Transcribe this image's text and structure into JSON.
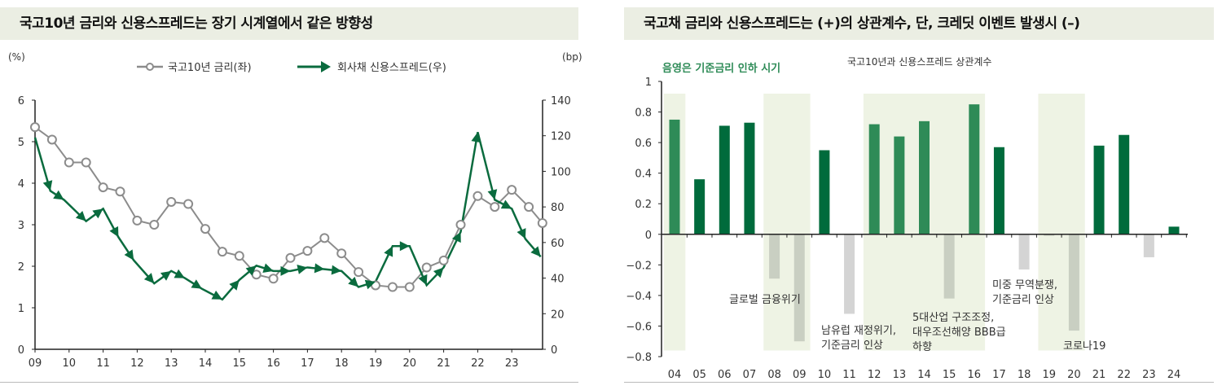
{
  "chart_data": [
    {
      "type": "line",
      "title": "국고10년 금리와 신용스프레드는 장기 시계열에서 같은 방향성",
      "ylabel_left": "(%)",
      "ylabel_right": "(bp)",
      "xlim": [
        2009,
        2024
      ],
      "ylim_left": [
        0,
        6
      ],
      "ylim_right": [
        0,
        140
      ],
      "x_ticks": [
        "09",
        "10",
        "11",
        "12",
        "13",
        "14",
        "15",
        "16",
        "17",
        "18",
        "19",
        "20",
        "21",
        "22",
        "23"
      ],
      "y_ticks_left": [
        "0",
        "1",
        "2",
        "3",
        "4",
        "5",
        "6"
      ],
      "y_ticks_right": [
        "0",
        "20",
        "40",
        "60",
        "80",
        "100",
        "120",
        "140"
      ],
      "legend_position": "top-center",
      "grid": false,
      "series": [
        {
          "name": "국고10년 금리(좌)",
          "axis": "left",
          "color": "#8c8c8c",
          "marker": "circle",
          "x": [
            2009.0,
            2009.5,
            2010.0,
            2010.5,
            2011.0,
            2011.5,
            2012.0,
            2012.5,
            2013.0,
            2013.5,
            2014.0,
            2014.5,
            2015.0,
            2015.5,
            2016.0,
            2016.5,
            2017.0,
            2017.5,
            2018.0,
            2018.5,
            2019.0,
            2019.5,
            2020.0,
            2020.5,
            2021.0,
            2021.5,
            2022.0,
            2022.5,
            2023.0,
            2023.5,
            2023.9
          ],
          "y": [
            5.35,
            5.05,
            4.5,
            4.5,
            3.9,
            3.8,
            3.1,
            3.0,
            3.55,
            3.5,
            2.9,
            2.35,
            2.25,
            1.8,
            1.7,
            2.2,
            2.37,
            2.68,
            2.31,
            1.86,
            1.54,
            1.5,
            1.5,
            1.97,
            2.14,
            3.0,
            3.69,
            3.43,
            3.84,
            3.43,
            3.04
          ]
        },
        {
          "name": "회사채 신용스프레드(우)",
          "axis": "right",
          "color": "#0a6b3e",
          "marker": "arrow",
          "x": [
            2009.0,
            2009.45,
            2009.85,
            2010.5,
            2011.0,
            2011.45,
            2011.9,
            2012.5,
            2013.0,
            2013.4,
            2013.9,
            2014.5,
            2015.0,
            2015.5,
            2016.0,
            2016.5,
            2017.0,
            2017.5,
            2018.0,
            2018.5,
            2019.0,
            2019.5,
            2020.0,
            2020.5,
            2021.0,
            2021.5,
            2022.0,
            2022.5,
            2023.0,
            2023.4,
            2023.85
          ],
          "y": [
            119,
            89,
            84,
            72,
            79,
            63,
            50,
            37,
            44,
            40,
            34,
            28,
            39,
            47,
            44,
            44,
            46,
            45,
            44,
            35,
            38,
            58,
            58,
            36,
            46,
            66,
            122,
            84,
            79,
            62,
            52
          ]
        }
      ]
    },
    {
      "type": "bar",
      "title": "국고채 금리와 신용스프레드는 (+)의 상관계수, 단, 크레딧 이벤트 발생시 (–)",
      "subtitle": "국고10년과 신용스프레드 상관계수",
      "shade_note": "음영은 기준금리 인하 시기",
      "categories": [
        "04",
        "05",
        "06",
        "07",
        "08",
        "09",
        "10",
        "11",
        "12",
        "13",
        "14",
        "15",
        "16",
        "17",
        "18",
        "19",
        "20",
        "21",
        "22",
        "23",
        "24"
      ],
      "values": [
        0.75,
        0.36,
        0.71,
        0.73,
        -0.29,
        -0.7,
        0.55,
        -0.52,
        0.72,
        0.64,
        0.74,
        -0.42,
        0.85,
        0.57,
        -0.23,
        -0.01,
        -0.63,
        0.58,
        0.65,
        -0.15,
        0.05
      ],
      "shaded_periods": [
        [
          "04",
          "04"
        ],
        [
          "08",
          "09"
        ],
        [
          "12",
          "16"
        ],
        [
          "19",
          "20"
        ]
      ],
      "ylim": [
        -0.8,
        1
      ],
      "y_ticks": [
        "1",
        "0.8",
        "0.6",
        "0.4",
        "0.2",
        "0",
        "-0.2",
        "-0.4",
        "-0.6",
        "-0.8"
      ],
      "grid": false,
      "colors": {
        "positive": "#006b3c",
        "positive_shaded": "#2e8b57",
        "negative": "#d4d4d4",
        "negative_shaded": "#c9cfc2",
        "shade": "#eef3e4"
      },
      "annotations": [
        {
          "at": "08",
          "text": [
            "글로벌 금융위기"
          ]
        },
        {
          "at": "10",
          "text": [
            "남유럽 재정위기,",
            "기준금리 인상"
          ]
        },
        {
          "at": "15",
          "text": [
            "5대산업 구조조정,",
            "대우조선해양 BBB급",
            "하향"
          ]
        },
        {
          "at": "17",
          "text": [
            "미중 무역분쟁,",
            "기준금리 인상"
          ]
        },
        {
          "at": "20",
          "text": [
            "코로나19"
          ]
        }
      ]
    }
  ]
}
